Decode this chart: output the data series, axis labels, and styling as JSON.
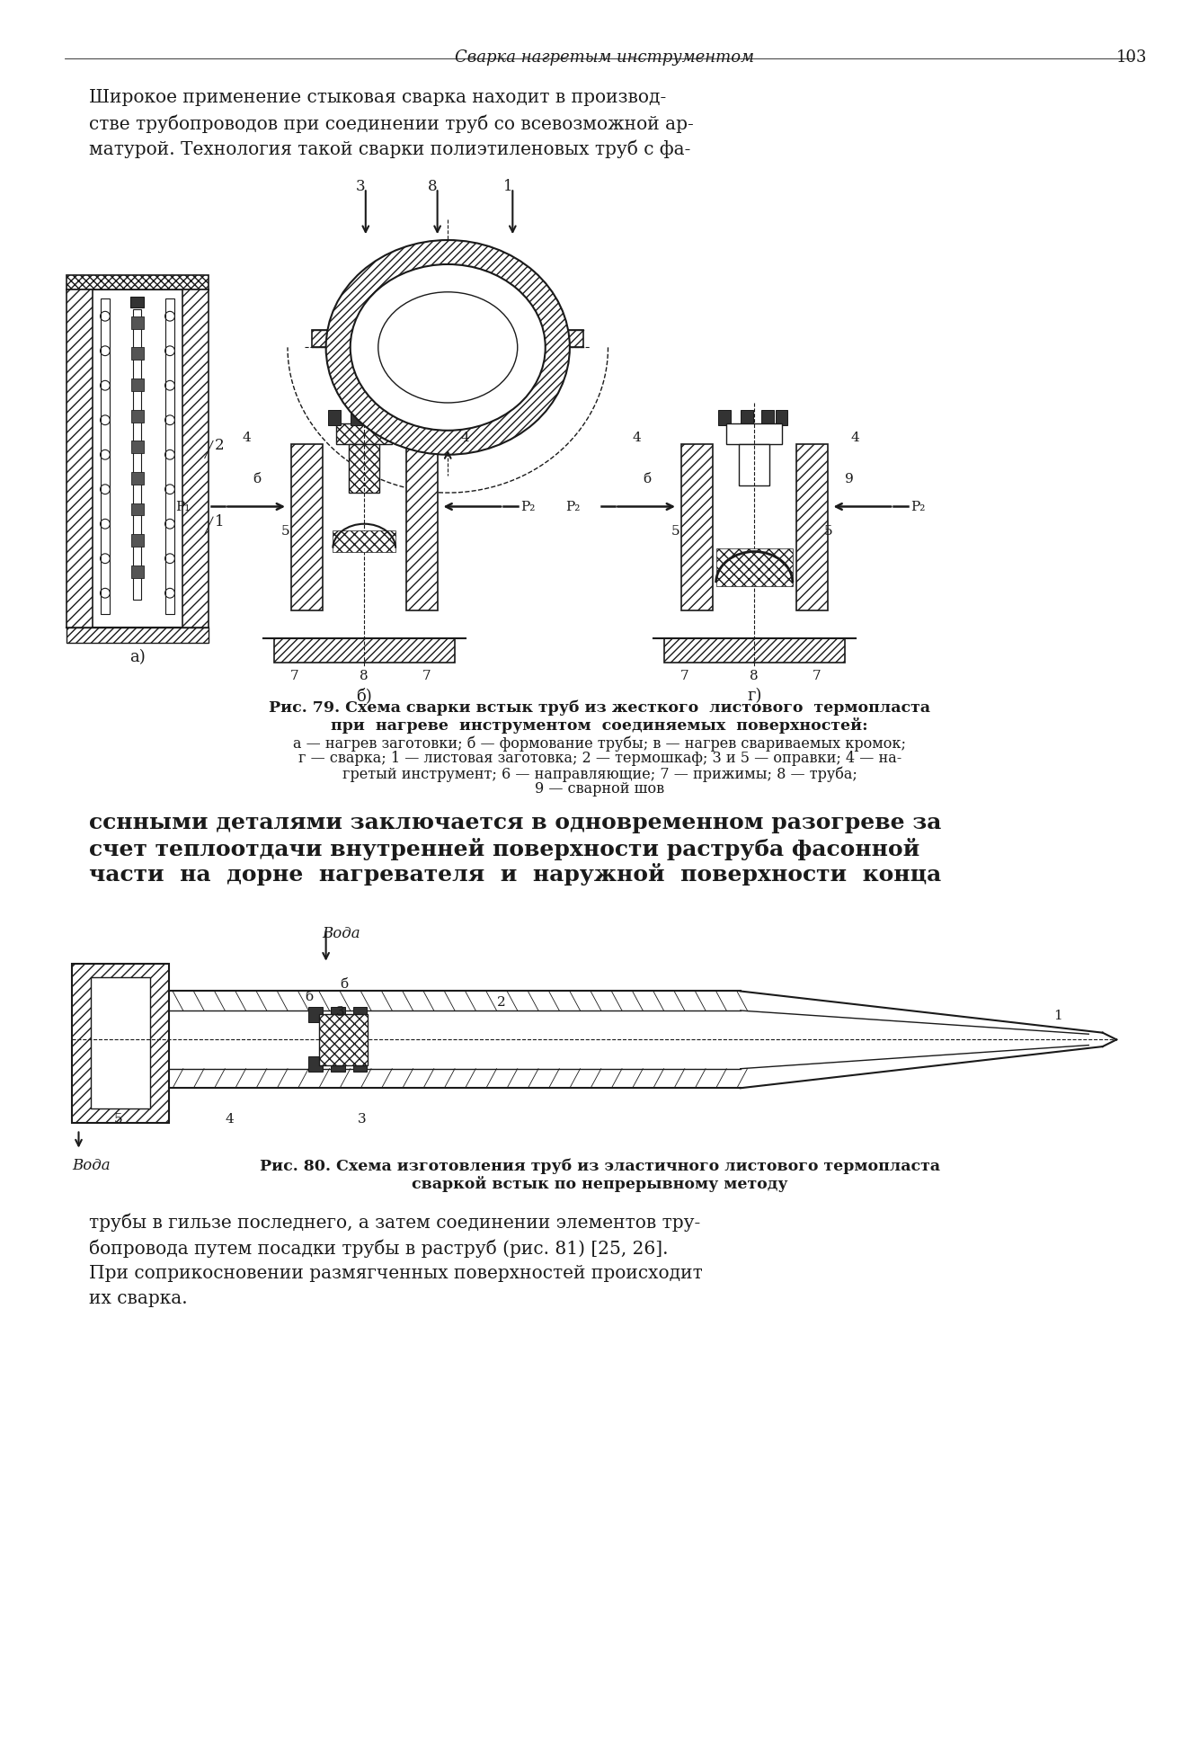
{
  "bg_color": "#ffffff",
  "page_width": 16.96,
  "page_height": 24.96,
  "header_italic": "Сварка нагретым инструментом",
  "header_page_num": "103",
  "para1_lines": [
    "Широкое применение стыковая сварка находит в производ-",
    "стве трубопроводов при соединении труб со всевозможной ар-",
    "матурой. Технология такой сварки полиэтиленовых труб с фа-"
  ],
  "fig79_caption_line1": "Рис. 79. Схема сварки встык труб из жесткого  листового  термопласта",
  "fig79_caption_line2": "при  нагреве  инструментом  соединяемых  поверхностей:",
  "fig79_caption_line3": "а — нагрев заготовки; б — формование трубы; в — нагрев свариваемых кромок;",
  "fig79_caption_line4": "г — сварка; 1 — листовая заготовка; 2 — термошкаф; 3 и 5 — оправки; 4 — на-",
  "fig79_caption_line5": "гретый инструмент; 6 — направляющие; 7 — прижимы; 8 — труба;",
  "fig79_caption_line6": "9 — сварной шов",
  "para2_lines": [
    "сснными деталями заключается в одновременном разогреве за",
    "счет теплоотдачи внутренней поверхности раструба фасонной",
    "части  на  дорне  нагревателя  и  наружной  поверхности  конца"
  ],
  "fig80_label_top": "Вода",
  "fig80_label_bottom": "Вода",
  "fig80_caption_line1": "Рис. 80. Схема изготовления труб из эластичного листового термопласта",
  "fig80_caption_line2": "сваркой встык по непрерывному методу",
  "para3_lines": [
    "трубы в гильзе последнего, а затем соединении элементов тру-",
    "бопровода путем посадки трубы в раструб (рис. 81) [25, 26].",
    "При соприкосновении размягченных поверхностей происходит",
    "их сварка."
  ],
  "text_color": "#1a1a1a",
  "line_color": "#1a1a1a"
}
